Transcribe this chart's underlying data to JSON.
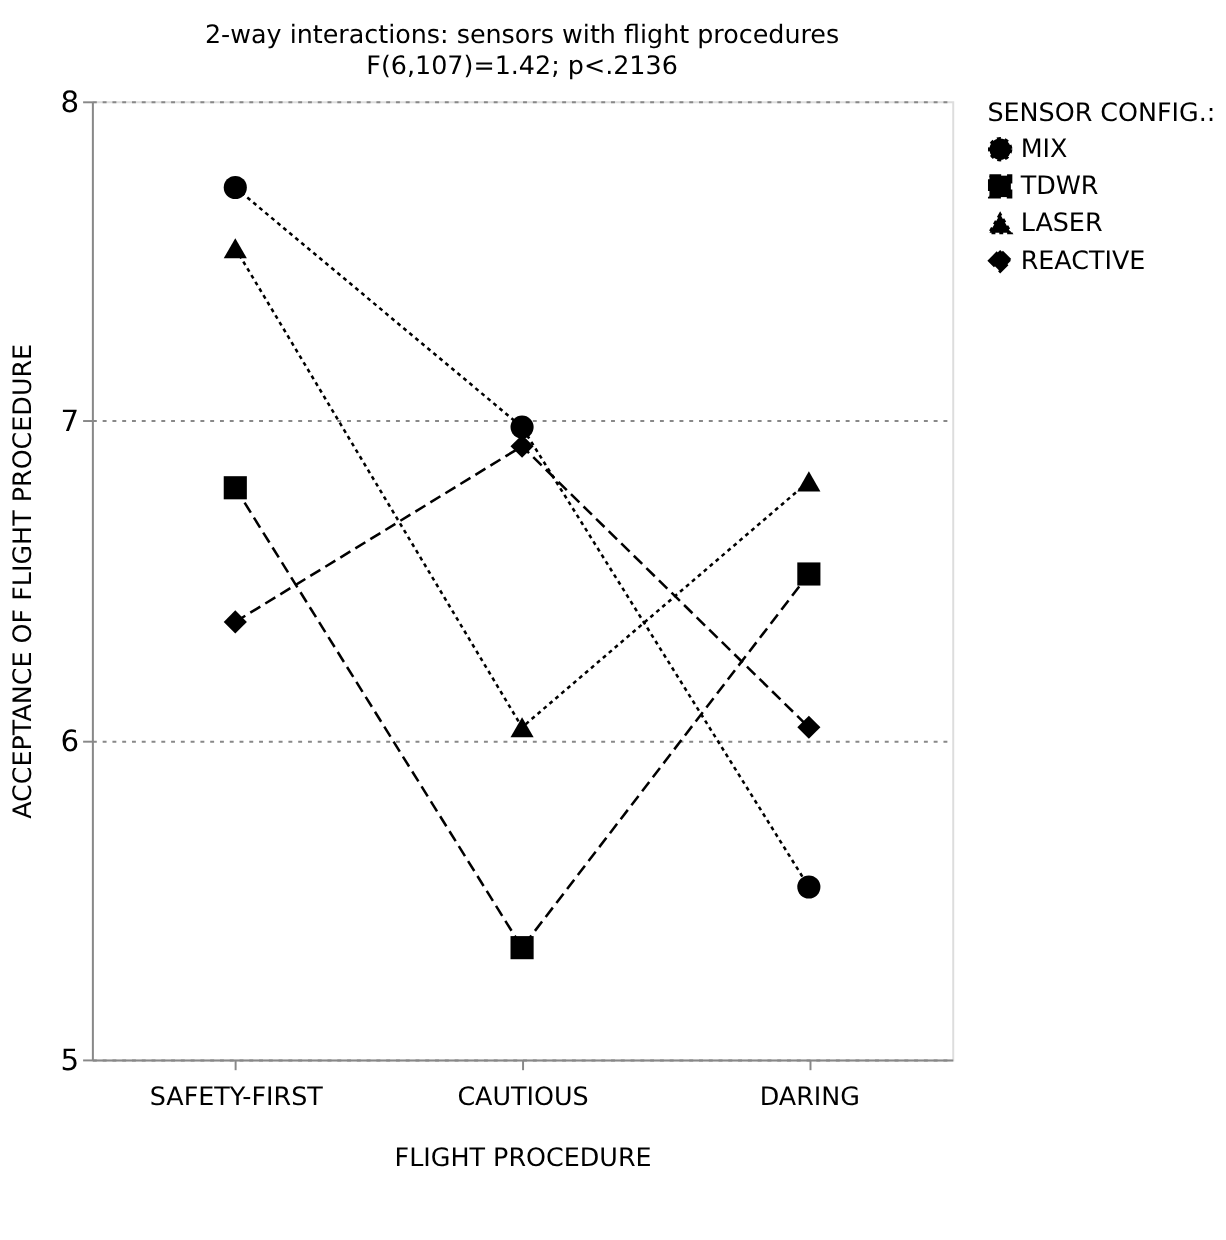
{
  "chart_data": {
    "type": "line",
    "title": "2-way interactions: sensors with flight procedures",
    "subtitle": "F(6,107)=1.42; p<.2136",
    "xlabel": "FLIGHT PROCEDURE",
    "ylabel": "ACCEPTANCE OF FLIGHT PROCEDURE",
    "legend_title": "SENSOR CONFIG.:",
    "legend": "right",
    "categories": [
      "SAFETY-FIRST",
      "CAUTIOUS",
      "DARING"
    ],
    "ylim": [
      5,
      8
    ],
    "yticks": [
      5,
      6,
      7,
      8
    ],
    "grid": "y",
    "series": [
      {
        "name": "MIX",
        "color": "#000000",
        "marker": "circle",
        "line_style": "dotted",
        "values": [
          7.73,
          6.98,
          5.54
        ]
      },
      {
        "name": "TDWR",
        "color": "#000000",
        "marker": "square",
        "line_style": "dashed",
        "values": [
          6.79,
          5.35,
          6.52
        ]
      },
      {
        "name": "LASER",
        "color": "#000000",
        "marker": "triangle",
        "line_style": "dotted",
        "values": [
          7.54,
          6.04,
          6.81
        ]
      },
      {
        "name": "REACTIVE",
        "color": "#000000",
        "marker": "diamond",
        "line_style": "dashed",
        "values": [
          6.37,
          6.92,
          6.04
        ]
      }
    ]
  }
}
